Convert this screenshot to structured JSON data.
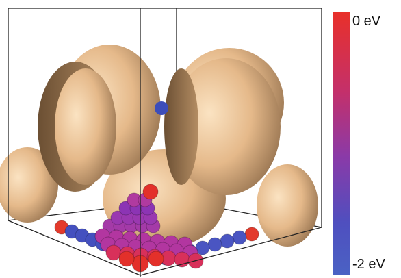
{
  "colorbar": {
    "top_label": "0 eV",
    "bottom_label": "-2 eV"
  }
}
